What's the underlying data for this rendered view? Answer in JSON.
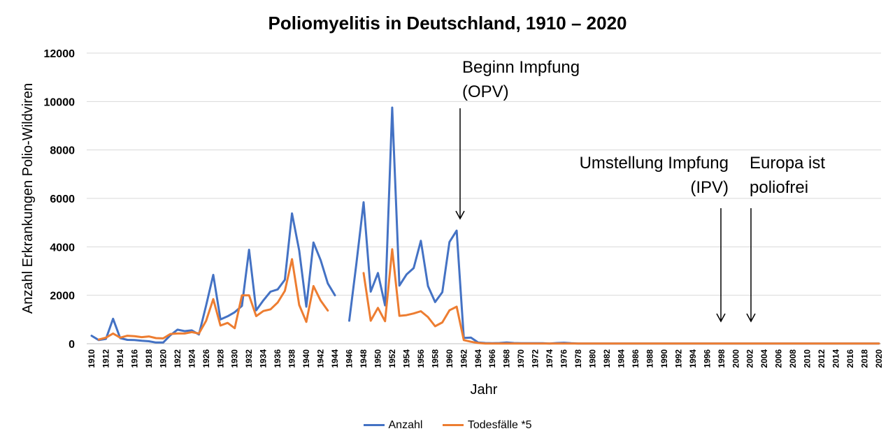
{
  "chart_data": {
    "type": "line",
    "title": "Poliomyelitis in Deutschland, 1910 – 2020",
    "xlabel": "Jahr",
    "ylabel": "Anzahl Erkrankungen Polio-Wildviren",
    "ylim": [
      0,
      12000
    ],
    "yticks": [
      "0",
      "2000",
      "4000",
      "6000",
      "8000",
      "10000",
      "12000"
    ],
    "x_start": 1910,
    "x_end": 2020,
    "grid": "horizontal",
    "legend_position": "bottom",
    "series": [
      {
        "name": "Anzahl",
        "color": "#4472C4",
        "values": [
          330,
          150,
          200,
          1030,
          230,
          160,
          150,
          120,
          100,
          50,
          50,
          350,
          580,
          520,
          550,
          380,
          1580,
          2840,
          1000,
          1130,
          1300,
          1560,
          3880,
          1380,
          1790,
          2150,
          2240,
          2640,
          5380,
          3850,
          1530,
          4180,
          3450,
          2490,
          2000,
          null,
          950,
          3310,
          5840,
          2150,
          2920,
          1580,
          9750,
          2400,
          2860,
          3120,
          4250,
          2380,
          1720,
          2130,
          4200,
          4670,
          240,
          250,
          50,
          30,
          20,
          30,
          50,
          30,
          20,
          20,
          20,
          20,
          10,
          30,
          40,
          20,
          10,
          10,
          10,
          5,
          5,
          5,
          5,
          5,
          5,
          5,
          5,
          5,
          5,
          5,
          5,
          5,
          5,
          5,
          5,
          5,
          5,
          5,
          5,
          5,
          5,
          5,
          5,
          5,
          5,
          5,
          5,
          5,
          5,
          5,
          5,
          5,
          5,
          5,
          5,
          5,
          5,
          5,
          5
        ]
      },
      {
        "name": "Todesfälle *5",
        "color": "#ED7D31",
        "values": [
          null,
          170,
          250,
          420,
          250,
          330,
          310,
          270,
          300,
          230,
          220,
          400,
          420,
          420,
          480,
          420,
          950,
          1840,
          750,
          860,
          640,
          2000,
          2000,
          1140,
          1350,
          1420,
          1700,
          2180,
          3490,
          1600,
          900,
          2380,
          1780,
          1370,
          null,
          null,
          null,
          null,
          2920,
          950,
          1480,
          930,
          3900,
          1150,
          1180,
          1250,
          1340,
          1100,
          720,
          880,
          1380,
          1530,
          150,
          80,
          30,
          10,
          5,
          5,
          5,
          5,
          5,
          5,
          5,
          5,
          5,
          5,
          5,
          5,
          5,
          5,
          5,
          5,
          5,
          5,
          5,
          5,
          5,
          5,
          5,
          5,
          5,
          5,
          5,
          5,
          5,
          5,
          5,
          5,
          5,
          5,
          5,
          5,
          5,
          5,
          5,
          5,
          5,
          5,
          5,
          5,
          5,
          5,
          5,
          5,
          5,
          5,
          5,
          5,
          5,
          5,
          5
        ]
      }
    ],
    "annotations": [
      {
        "lines": [
          "Beginn Impfung",
          "(OPV)"
        ],
        "year": 1962,
        "align": "center"
      },
      {
        "lines": [
          "Umstellung Impfung",
          "(IPV)"
        ],
        "year": 1998,
        "align": "end"
      },
      {
        "lines": [
          "Europa ist",
          "poliofrei"
        ],
        "year": 2002,
        "align": "start"
      }
    ]
  }
}
